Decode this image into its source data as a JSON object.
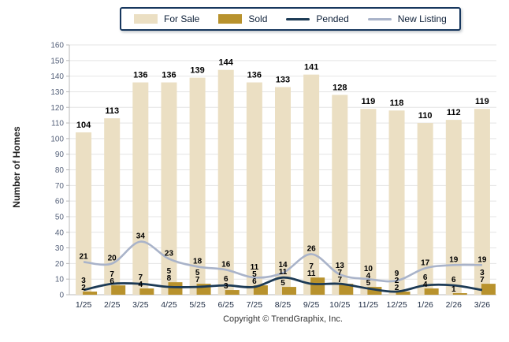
{
  "legend": {
    "items": [
      {
        "label": "For Sale",
        "swatch": "bar"
      },
      {
        "label": "Sold",
        "swatch": "bar"
      },
      {
        "label": "Pended",
        "swatch": "line"
      },
      {
        "label": "New Listing",
        "swatch": "line"
      }
    ]
  },
  "footer": {
    "text": "Copyright © TrendGraphix, Inc."
  },
  "chart_data": {
    "type": "bar",
    "subtype": "grouped bars with overlaid smooth lines",
    "title": "",
    "xlabel": "",
    "ylabel": "Number of Homes",
    "ylim": [
      0,
      160
    ],
    "ytick_step": 10,
    "grid": true,
    "legend_position": "top",
    "categories": [
      "1/25",
      "2/25",
      "3/25",
      "4/25",
      "5/25",
      "6/25",
      "7/25",
      "8/25",
      "9/25",
      "10/25",
      "11/25",
      "12/25",
      "1/26",
      "2/26",
      "3/26"
    ],
    "series": [
      {
        "name": "For Sale",
        "type": "bar",
        "color": "#EBDFC3",
        "values": [
          104,
          113,
          136,
          136,
          139,
          144,
          136,
          133,
          141,
          128,
          119,
          118,
          110,
          112,
          119
        ]
      },
      {
        "name": "Sold",
        "type": "bar",
        "color": "#B8922D",
        "values": [
          2,
          6,
          4,
          8,
          7,
          3,
          6,
          5,
          11,
          7,
          5,
          2,
          4,
          1,
          7
        ]
      },
      {
        "name": "Pended",
        "type": "line",
        "color": "#1C3A55",
        "values": [
          3,
          7,
          7,
          5,
          5,
          6,
          5,
          11,
          7,
          7,
          4,
          2,
          6,
          6,
          3
        ]
      },
      {
        "name": "New Listing",
        "type": "line",
        "color": "#A9B3C9",
        "values": [
          21,
          20,
          34,
          23,
          18,
          16,
          11,
          14,
          26,
          13,
          10,
          9,
          17,
          19,
          19
        ]
      }
    ],
    "colors": {
      "grid": "#e4e4e4",
      "axis": "#b9b9b9",
      "y_tick_text": "#55617a",
      "x_tick_text": "#1f2d44",
      "value_label": "#000000",
      "legend_border": "#17375E"
    }
  }
}
